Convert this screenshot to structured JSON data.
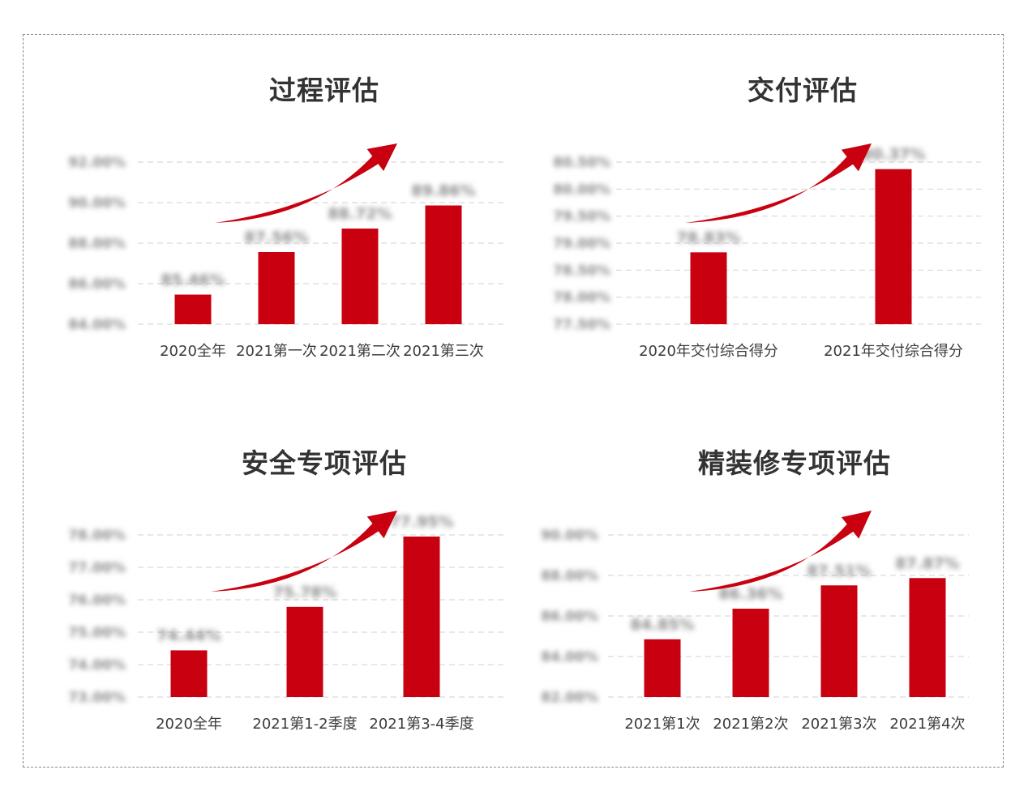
{
  "colors": {
    "bar": "#c8000f",
    "arrow": "#c8000f",
    "grid": "#d9d9d9",
    "title": "#333333",
    "axis_text": "#3c3c3c",
    "blurred_text": "#8c8c8c",
    "frame": "#8a8a8a"
  },
  "chart_data": [
    {
      "type": "bar",
      "title": "过程评估",
      "categories": [
        "2020全年",
        "2021第一次",
        "2021第二次",
        "2021第三次"
      ],
      "values": [
        85.46,
        87.56,
        88.72,
        89.86
      ],
      "data_labels": [
        "85.46%",
        "87.56%",
        "88.72%",
        "89.86%"
      ],
      "ylim": [
        84.0,
        92.0
      ],
      "yticks": [
        84.0,
        86.0,
        88.0,
        90.0,
        92.0
      ],
      "ytick_labels": [
        "84.00%",
        "86.00%",
        "88.00%",
        "90.00%",
        "92.00%"
      ],
      "grid": true,
      "trend_arrow": true
    },
    {
      "type": "bar",
      "title": "交付评估",
      "categories": [
        "2020年交付综合得分",
        "2021年交付综合得分"
      ],
      "values": [
        78.83,
        80.37
      ],
      "data_labels": [
        "78.83%",
        "80.37%"
      ],
      "ylim": [
        77.5,
        80.5
      ],
      "yticks": [
        77.5,
        78.0,
        78.5,
        79.0,
        79.5,
        80.0,
        80.5
      ],
      "ytick_labels": [
        "77.50%",
        "78.00%",
        "78.50%",
        "79.00%",
        "79.50%",
        "80.00%",
        "80.50%"
      ],
      "grid": true,
      "trend_arrow": true
    },
    {
      "type": "bar",
      "title": "安全专项评估",
      "categories": [
        "2020全年",
        "2021第1-2季度",
        "2021第3-4季度"
      ],
      "values": [
        74.44,
        75.78,
        77.95
      ],
      "data_labels": [
        "74.44%",
        "75.78%",
        "77.95%"
      ],
      "ylim": [
        73.0,
        78.0
      ],
      "yticks": [
        73.0,
        74.0,
        75.0,
        76.0,
        77.0,
        78.0
      ],
      "ytick_labels": [
        "73.00%",
        "74.00%",
        "75.00%",
        "76.00%",
        "77.00%",
        "78.00%"
      ],
      "grid": true,
      "trend_arrow": true
    },
    {
      "type": "bar",
      "title": "精装修专项评估",
      "categories": [
        "2021第1次",
        "2021第2次",
        "2021第3次",
        "2021第4次"
      ],
      "values": [
        84.85,
        86.36,
        87.51,
        87.87
      ],
      "data_labels": [
        "84.85%",
        "86.36%",
        "87.51%",
        "87.87%"
      ],
      "ylim": [
        82.0,
        90.0
      ],
      "yticks": [
        82.0,
        84.0,
        86.0,
        88.0,
        90.0
      ],
      "ytick_labels": [
        "82.00%",
        "84.00%",
        "86.00%",
        "88.00%",
        "90.00%"
      ],
      "grid": true,
      "trend_arrow": true
    }
  ]
}
